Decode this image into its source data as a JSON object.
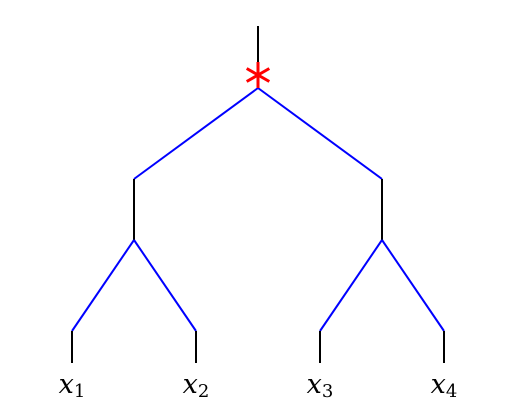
{
  "diagram": {
    "type": "binary-tree",
    "root_marker": {
      "symbol": "asterisk-marker",
      "color": "#ff0000"
    },
    "colors": {
      "stem": "#000000",
      "branch": "#0000ff",
      "marker": "#ff0000"
    },
    "leaves": [
      {
        "base": "x",
        "sub": "1"
      },
      {
        "base": "x",
        "sub": "2"
      },
      {
        "base": "x",
        "sub": "3"
      },
      {
        "base": "x",
        "sub": "4"
      }
    ],
    "edges": [
      {
        "from": "root",
        "to": "left-subtree"
      },
      {
        "from": "root",
        "to": "right-subtree"
      },
      {
        "from": "left-subtree",
        "to": "leaf-1"
      },
      {
        "from": "left-subtree",
        "to": "leaf-2"
      },
      {
        "from": "right-subtree",
        "to": "leaf-3"
      },
      {
        "from": "right-subtree",
        "to": "leaf-4"
      }
    ]
  }
}
